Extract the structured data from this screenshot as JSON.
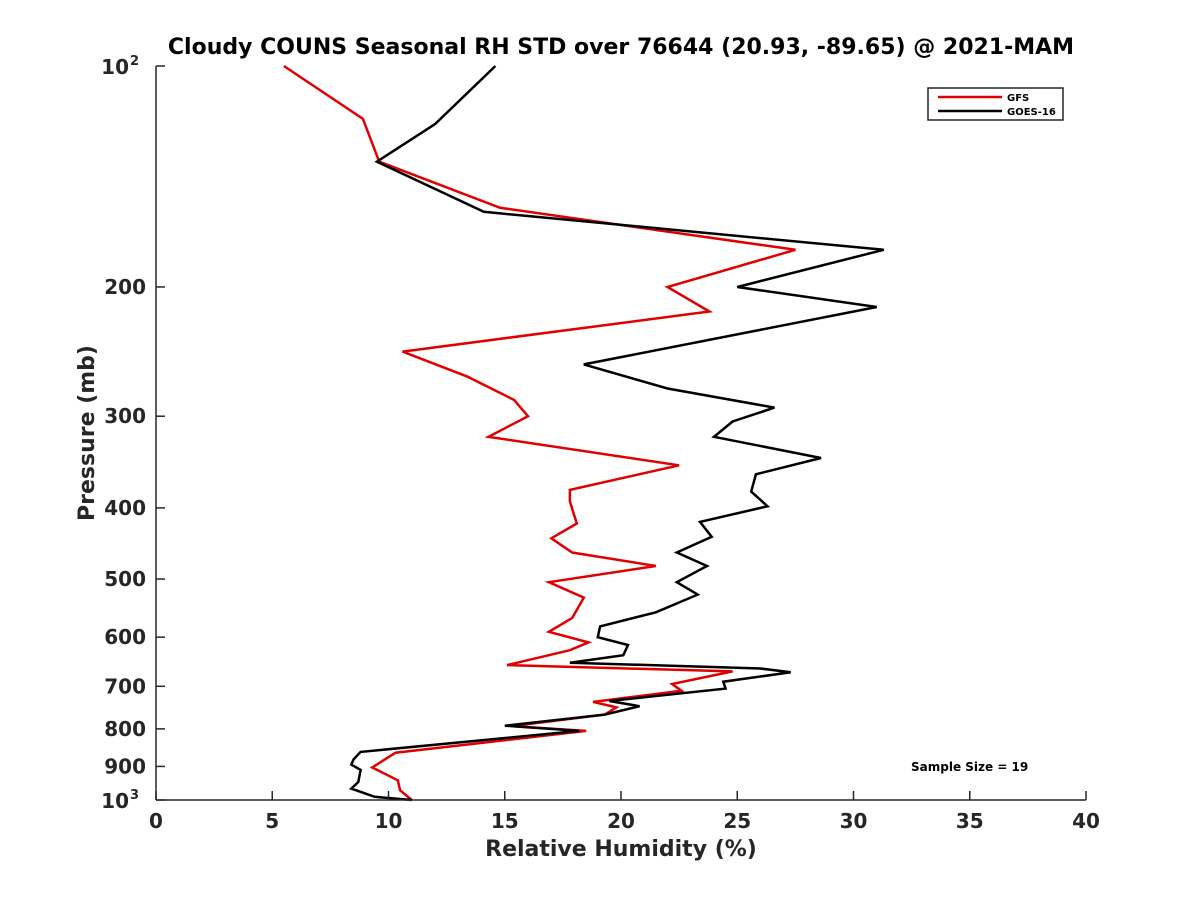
{
  "chart_data": {
    "type": "line",
    "title": "Cloudy COUNS Seasonal RH STD over 76644 (20.93, -89.65) @ 2021-MAM",
    "xlabel": "Relative Humidity (%)",
    "ylabel": "Pressure (mb)",
    "xlim": [
      0,
      40
    ],
    "ylim": [
      100,
      1000
    ],
    "yscale": "log",
    "y_reversed": true,
    "xticks": [
      0,
      5,
      10,
      15,
      20,
      25,
      30,
      35,
      40
    ],
    "yticks": [
      {
        "value": 100,
        "base": "10",
        "exp": "2"
      },
      {
        "value": 200,
        "label": "200"
      },
      {
        "value": 300,
        "label": "300"
      },
      {
        "value": 400,
        "label": "400"
      },
      {
        "value": 500,
        "label": "500"
      },
      {
        "value": 600,
        "label": "600"
      },
      {
        "value": 700,
        "label": "700"
      },
      {
        "value": 800,
        "label": "800"
      },
      {
        "value": 900,
        "label": "900"
      },
      {
        "value": 1000,
        "base": "10",
        "exp": "3"
      }
    ],
    "legend_position": "top-right",
    "series": [
      {
        "name": "GFS",
        "color": "#e00000",
        "points": [
          [
            5.5,
            100
          ],
          [
            8.9,
            118
          ],
          [
            9.6,
            135
          ],
          [
            14.8,
            156
          ],
          [
            27.5,
            178
          ],
          [
            22.0,
            200
          ],
          [
            23.8,
            216
          ],
          [
            10.6,
            245
          ],
          [
            13.4,
            265
          ],
          [
            15.4,
            285
          ],
          [
            16.0,
            300
          ],
          [
            14.3,
            320
          ],
          [
            22.5,
            350
          ],
          [
            17.8,
            378
          ],
          [
            17.8,
            392
          ],
          [
            18.1,
            420
          ],
          [
            17.0,
            440
          ],
          [
            17.9,
            460
          ],
          [
            21.5,
            480
          ],
          [
            16.9,
            505
          ],
          [
            18.4,
            530
          ],
          [
            17.9,
            565
          ],
          [
            16.9,
            590
          ],
          [
            18.6,
            610
          ],
          [
            17.8,
            625
          ],
          [
            15.1,
            655
          ],
          [
            24.8,
            668
          ],
          [
            22.2,
            695
          ],
          [
            22.6,
            710
          ],
          [
            18.8,
            735
          ],
          [
            19.8,
            748
          ],
          [
            19.3,
            765
          ],
          [
            15.3,
            793
          ],
          [
            18.5,
            805
          ],
          [
            10.3,
            862
          ],
          [
            9.3,
            903
          ],
          [
            10.4,
            940
          ],
          [
            10.5,
            970
          ],
          [
            11.0,
            1000
          ]
        ]
      },
      {
        "name": "GOES-16",
        "color": "#000000",
        "points": [
          [
            14.6,
            100
          ],
          [
            12.0,
            120
          ],
          [
            9.5,
            135
          ],
          [
            14.1,
            158
          ],
          [
            31.3,
            178
          ],
          [
            25.0,
            200
          ],
          [
            31.0,
            213
          ],
          [
            18.4,
            255
          ],
          [
            22.0,
            275
          ],
          [
            26.6,
            292
          ],
          [
            24.8,
            305
          ],
          [
            24.0,
            320
          ],
          [
            28.6,
            342
          ],
          [
            25.8,
            360
          ],
          [
            25.6,
            380
          ],
          [
            26.3,
            398
          ],
          [
            23.4,
            418
          ],
          [
            23.9,
            438
          ],
          [
            22.4,
            460
          ],
          [
            23.7,
            480
          ],
          [
            22.4,
            505
          ],
          [
            23.3,
            525
          ],
          [
            21.5,
            555
          ],
          [
            19.1,
            580
          ],
          [
            19.0,
            600
          ],
          [
            20.3,
            615
          ],
          [
            20.1,
            635
          ],
          [
            17.8,
            650
          ],
          [
            26.0,
            662
          ],
          [
            27.3,
            670
          ],
          [
            24.4,
            690
          ],
          [
            24.5,
            705
          ],
          [
            19.5,
            733
          ],
          [
            20.8,
            745
          ],
          [
            19.3,
            765
          ],
          [
            15.0,
            792
          ],
          [
            18.2,
            805
          ],
          [
            8.8,
            860
          ],
          [
            8.5,
            880
          ],
          [
            8.4,
            895
          ],
          [
            8.8,
            910
          ],
          [
            8.7,
            945
          ],
          [
            8.4,
            965
          ],
          [
            9.4,
            990
          ],
          [
            11.0,
            1000
          ]
        ]
      }
    ],
    "annotation": "Sample Size = 19"
  }
}
